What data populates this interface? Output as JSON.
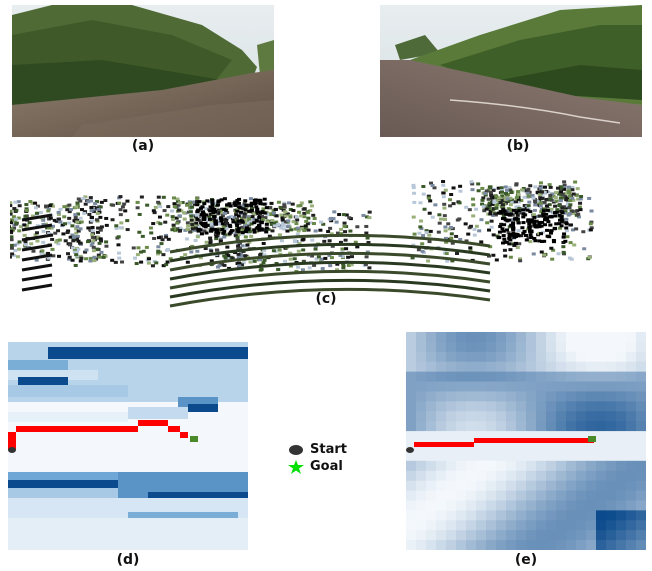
{
  "figure": {
    "panels": [
      {
        "id": "a",
        "caption": "(a)",
        "kind": "photo"
      },
      {
        "id": "b",
        "caption": "(b)",
        "kind": "photo"
      },
      {
        "id": "c",
        "caption": "(c)",
        "kind": "point-cloud"
      },
      {
        "id": "d",
        "caption": "(d)",
        "kind": "cost-map"
      },
      {
        "id": "e",
        "caption": "(e)",
        "kind": "cost-map"
      }
    ],
    "legend": {
      "start_label": "Start",
      "goal_label": "Goal",
      "start_icon": "dark-circle-icon",
      "goal_icon": "green-star-icon"
    },
    "colors": {
      "path": "#ff0000",
      "start": "#333333",
      "goal": "#00ff00",
      "cost_dark": "#0b4a8c",
      "cost_mid": "#6fa7d6",
      "cost_light": "#d6e6f4",
      "free": "#f4f8fc"
    }
  }
}
